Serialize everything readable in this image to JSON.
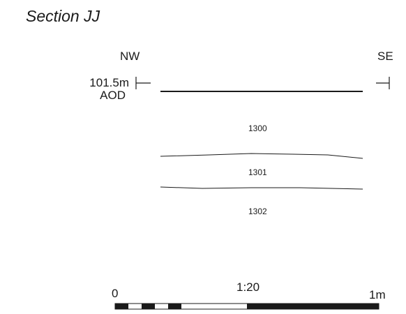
{
  "section": {
    "title": "Section JJ",
    "orientation_left": "NW",
    "orientation_right": "SE",
    "datum_level": "101.5m",
    "datum_unit": "AOD"
  },
  "contexts": [
    {
      "label": "1300"
    },
    {
      "label": "1301"
    },
    {
      "label": "1302"
    }
  ],
  "scale": {
    "start_label": "0",
    "ratio_label": "1:20",
    "end_label": "1m"
  }
}
